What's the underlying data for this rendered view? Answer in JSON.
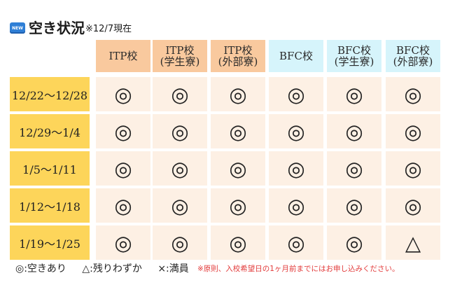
{
  "header": {
    "badge": "NEW",
    "title": "空き状況",
    "subtitle": "※12/7現在"
  },
  "table": {
    "columns": [
      {
        "line1": "ITP校",
        "line2": "",
        "group": "itp"
      },
      {
        "line1": "ITP校",
        "line2": "(学生寮)",
        "group": "itp"
      },
      {
        "line1": "ITP校",
        "line2": "(外部寮)",
        "group": "itp"
      },
      {
        "line1": "BFC校",
        "line2": "",
        "group": "bfc"
      },
      {
        "line1": "BFC校",
        "line2": "(学生寮)",
        "group": "bfc"
      },
      {
        "line1": "BFC校",
        "line2": "(外部寮)",
        "group": "bfc"
      }
    ],
    "rows": [
      {
        "label": "12/22〜12/28",
        "cells": [
          "◎",
          "◎",
          "◎",
          "◎",
          "◎",
          "◎"
        ]
      },
      {
        "label": "12/29〜1/4",
        "cells": [
          "◎",
          "◎",
          "◎",
          "◎",
          "◎",
          "◎"
        ]
      },
      {
        "label": "1/5〜1/11",
        "cells": [
          "◎",
          "◎",
          "◎",
          "◎",
          "◎",
          "◎"
        ]
      },
      {
        "label": "1/12〜1/18",
        "cells": [
          "◎",
          "◎",
          "◎",
          "◎",
          "◎",
          "◎"
        ]
      },
      {
        "label": "1/19〜1/25",
        "cells": [
          "◎",
          "◎",
          "◎",
          "◎",
          "◎",
          "△"
        ]
      }
    ]
  },
  "legend": {
    "available": "◎:空きあり",
    "few_left": "△:残りわずか",
    "full": "×:満員"
  },
  "note": "※原則、入校希望日の1ヶ月前までにはお申し込みください。",
  "colors": {
    "itp_header": "#f9c99e",
    "bfc_header": "#d6f4fb",
    "row_label": "#fdd55a",
    "cell_bg": "#fdf0e4",
    "note_text": "#e23a3a",
    "badge_bg": "#2f7fd6"
  }
}
